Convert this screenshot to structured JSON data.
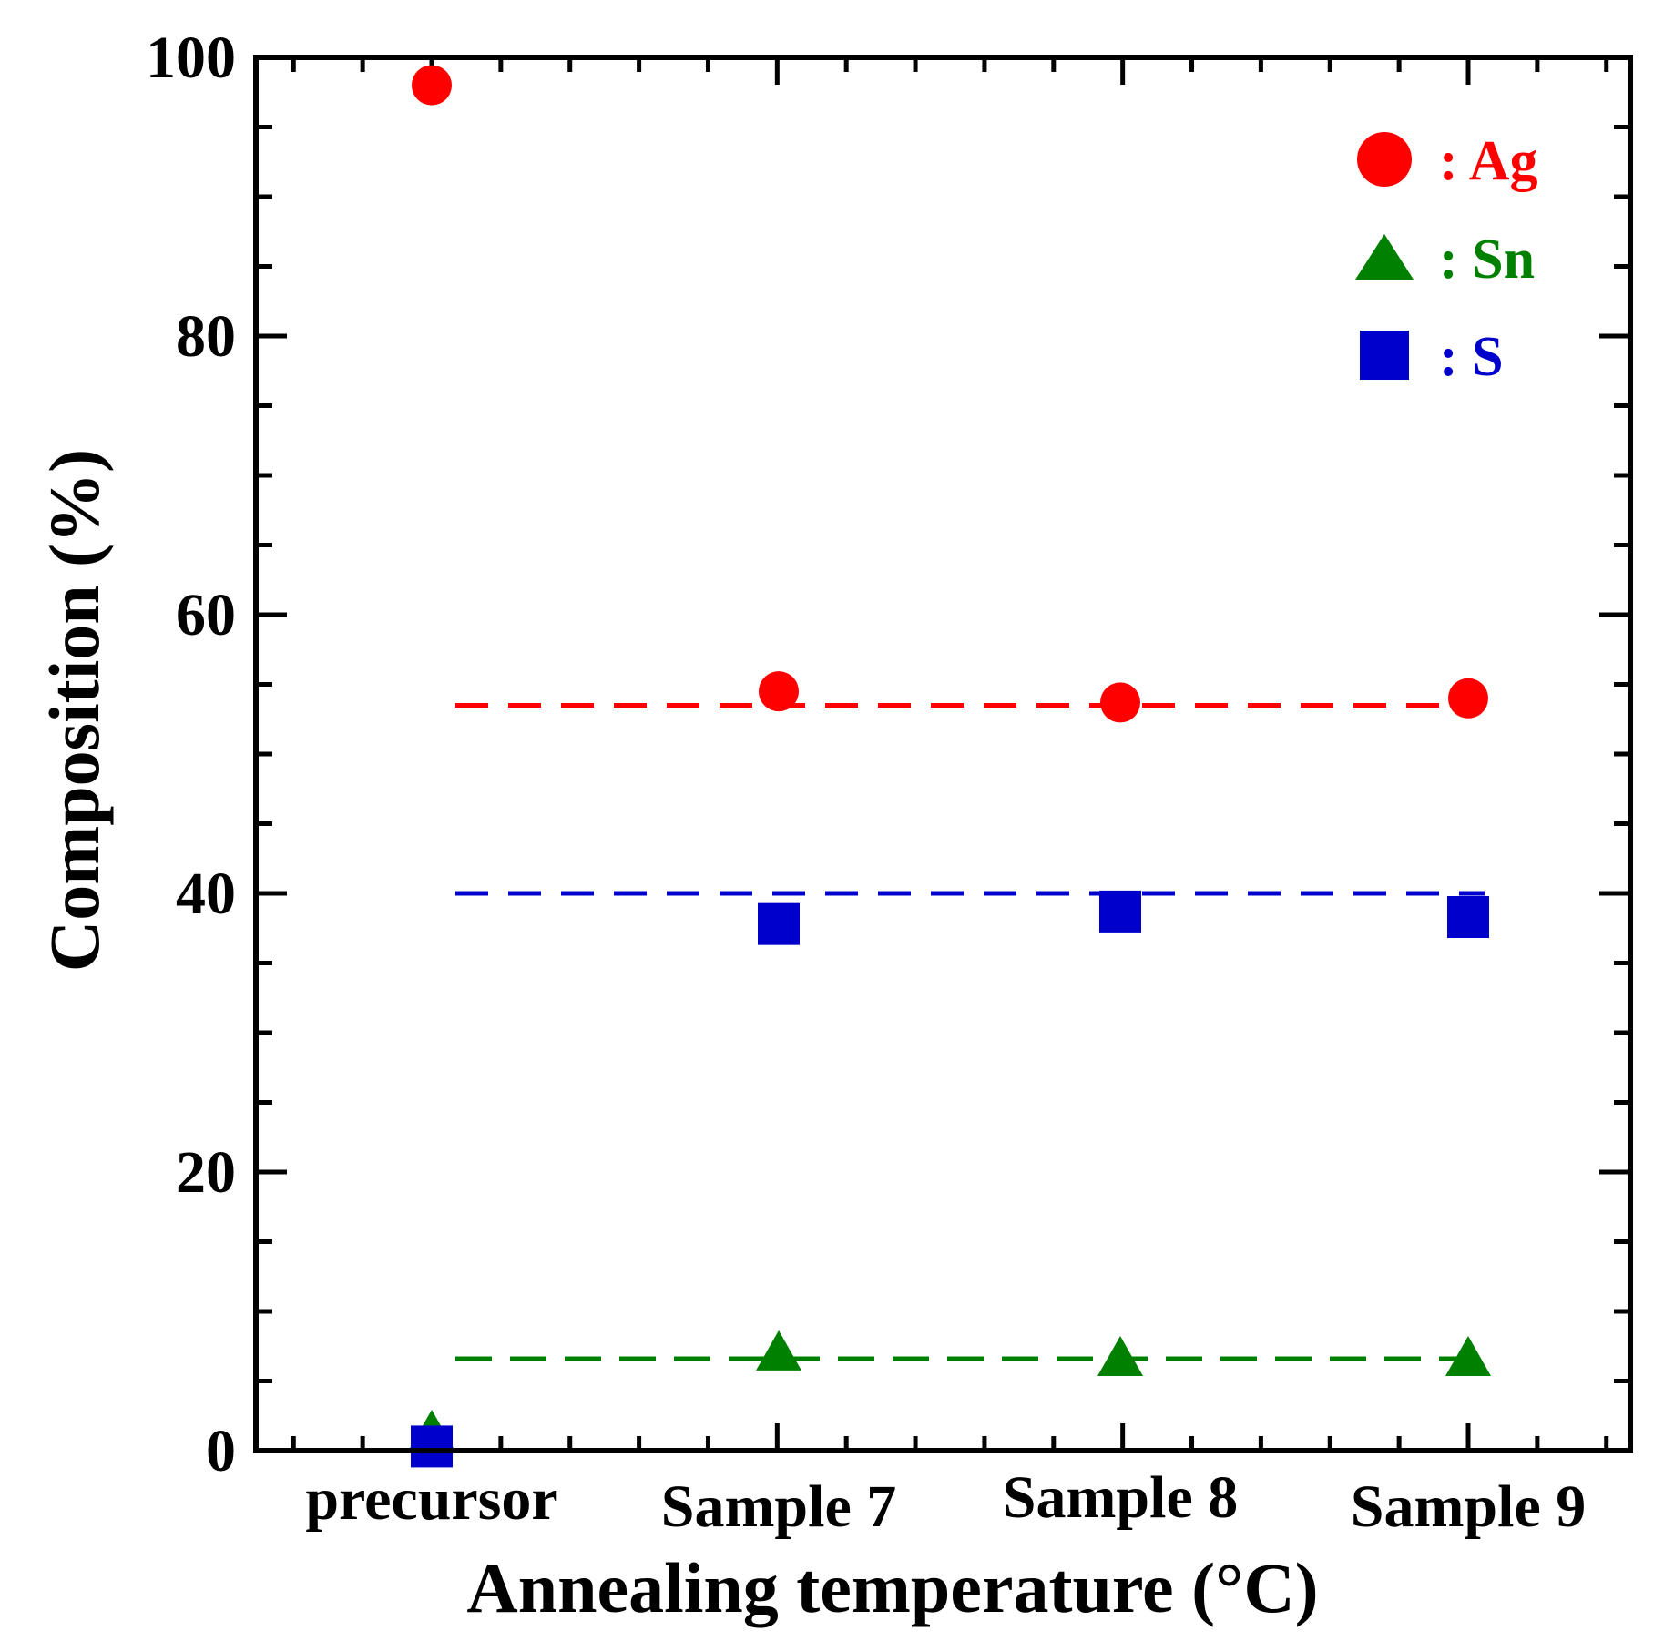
{
  "chart_data": {
    "type": "scatter",
    "title": "",
    "xlabel": "Annealing temperature (°C)",
    "ylabel": "Composition (%)",
    "categories": [
      "precursor",
      "Sample 7",
      "Sample 8",
      "Sample 9"
    ],
    "ylim": [
      0,
      100
    ],
    "yticks": [
      0,
      20,
      40,
      60,
      80,
      100
    ],
    "legend_position": "top-right",
    "series": [
      {
        "name": "Ag",
        "legend_label": ": Ag",
        "marker": "circle",
        "color": "#ff0000",
        "values": [
          98,
          54.5,
          53.7,
          54
        ],
        "reference_line": {
          "value": 53.5,
          "from": "precursor",
          "to": "Sample 9",
          "style": "dashed"
        }
      },
      {
        "name": "Sn",
        "legend_label": ": Sn",
        "marker": "triangle",
        "color": "#008000",
        "values": [
          1.5,
          7.2,
          6.8,
          6.8
        ],
        "reference_line": {
          "value": 6.6,
          "from": "precursor",
          "to": "Sample 9",
          "style": "dashed"
        }
      },
      {
        "name": "S",
        "legend_label": ": S",
        "marker": "square",
        "color": "#0000cc",
        "values": [
          0.3,
          37.8,
          38.7,
          38.3
        ],
        "reference_line": {
          "value": 40,
          "from": "precursor",
          "to": "Sample 9",
          "style": "dashed"
        }
      }
    ]
  }
}
